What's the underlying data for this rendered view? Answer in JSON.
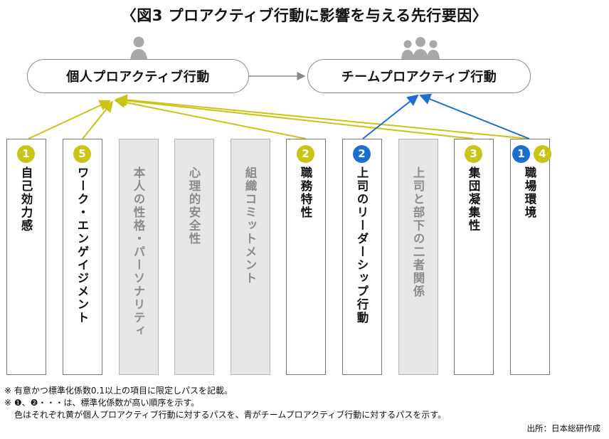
{
  "title": "〈図3 プロアクティブ行動に影響を与える先行要因〉",
  "outcomes": {
    "individual": "個人プロアクティブ行動",
    "team": "チームプロアクティブ行動"
  },
  "factors": [
    {
      "label": "自己効力感",
      "badges": [
        {
          "num": "1",
          "color": "yellow"
        }
      ],
      "highlighted": true
    },
    {
      "label": "ワーク・エンゲイジメント",
      "badges": [
        {
          "num": "5",
          "color": "yellow"
        }
      ],
      "highlighted": true
    },
    {
      "label": "本人の性格・パーソナリティ",
      "badges": [],
      "highlighted": false
    },
    {
      "label": "心理的安全性",
      "badges": [],
      "highlighted": false
    },
    {
      "label": "組織コミットメント",
      "badges": [],
      "highlighted": false
    },
    {
      "label": "職務特性",
      "badges": [
        {
          "num": "2",
          "color": "yellow"
        }
      ],
      "highlighted": true
    },
    {
      "label": "上司のリーダーシップ行動",
      "badges": [
        {
          "num": "2",
          "color": "blue"
        }
      ],
      "highlighted": true
    },
    {
      "label": "上司と部下の二者関係",
      "badges": [],
      "highlighted": false
    },
    {
      "label": "集団凝集性",
      "badges": [
        {
          "num": "3",
          "color": "yellow"
        }
      ],
      "highlighted": true
    },
    {
      "label": "職場環境",
      "badges": [
        {
          "num": "1",
          "color": "blue"
        },
        {
          "num": "4",
          "color": "yellow"
        }
      ],
      "highlighted": true
    }
  ],
  "colors": {
    "yellow": "#c9c415",
    "blue": "#1a6fd1",
    "grey_box": "#e6e6e6"
  },
  "notes": [
    "※ 有意かつ標準化係数0.1以上の項目に限定しパスを記載。",
    "※ ❶、❷・・・は、標準化係数が高い順序を示す。",
    "色はそれぞれ黄が個人プロアクティブ行動に対するパスを、青がチームプロアクティブ行動に対するパスを示す。"
  ],
  "source": "出所：日本総研作成"
}
